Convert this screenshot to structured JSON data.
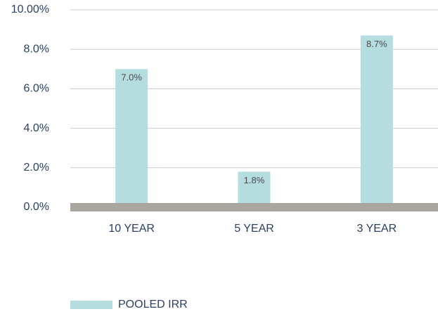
{
  "chart_data": {
    "type": "bar",
    "categories": [
      "10 YEAR",
      "5 YEAR",
      "3 YEAR"
    ],
    "series": [
      {
        "name": "POOLED IRR",
        "color": "#b5dde0",
        "values": [
          7.0,
          1.8,
          8.7
        ],
        "value_labels": [
          "7.0%",
          "1.8%",
          "8.7%"
        ]
      }
    ],
    "ylim": [
      0,
      10
    ],
    "yticks": [
      {
        "value": 0,
        "label": "0.0%"
      },
      {
        "value": 2,
        "label": "2.0%"
      },
      {
        "value": 4,
        "label": "4.0%"
      },
      {
        "value": 6,
        "label": "6.0%"
      },
      {
        "value": 8,
        "label": "8.0%"
      },
      {
        "value": 10,
        "label": "10.00%"
      }
    ],
    "grid": true,
    "legend": "bottom"
  }
}
